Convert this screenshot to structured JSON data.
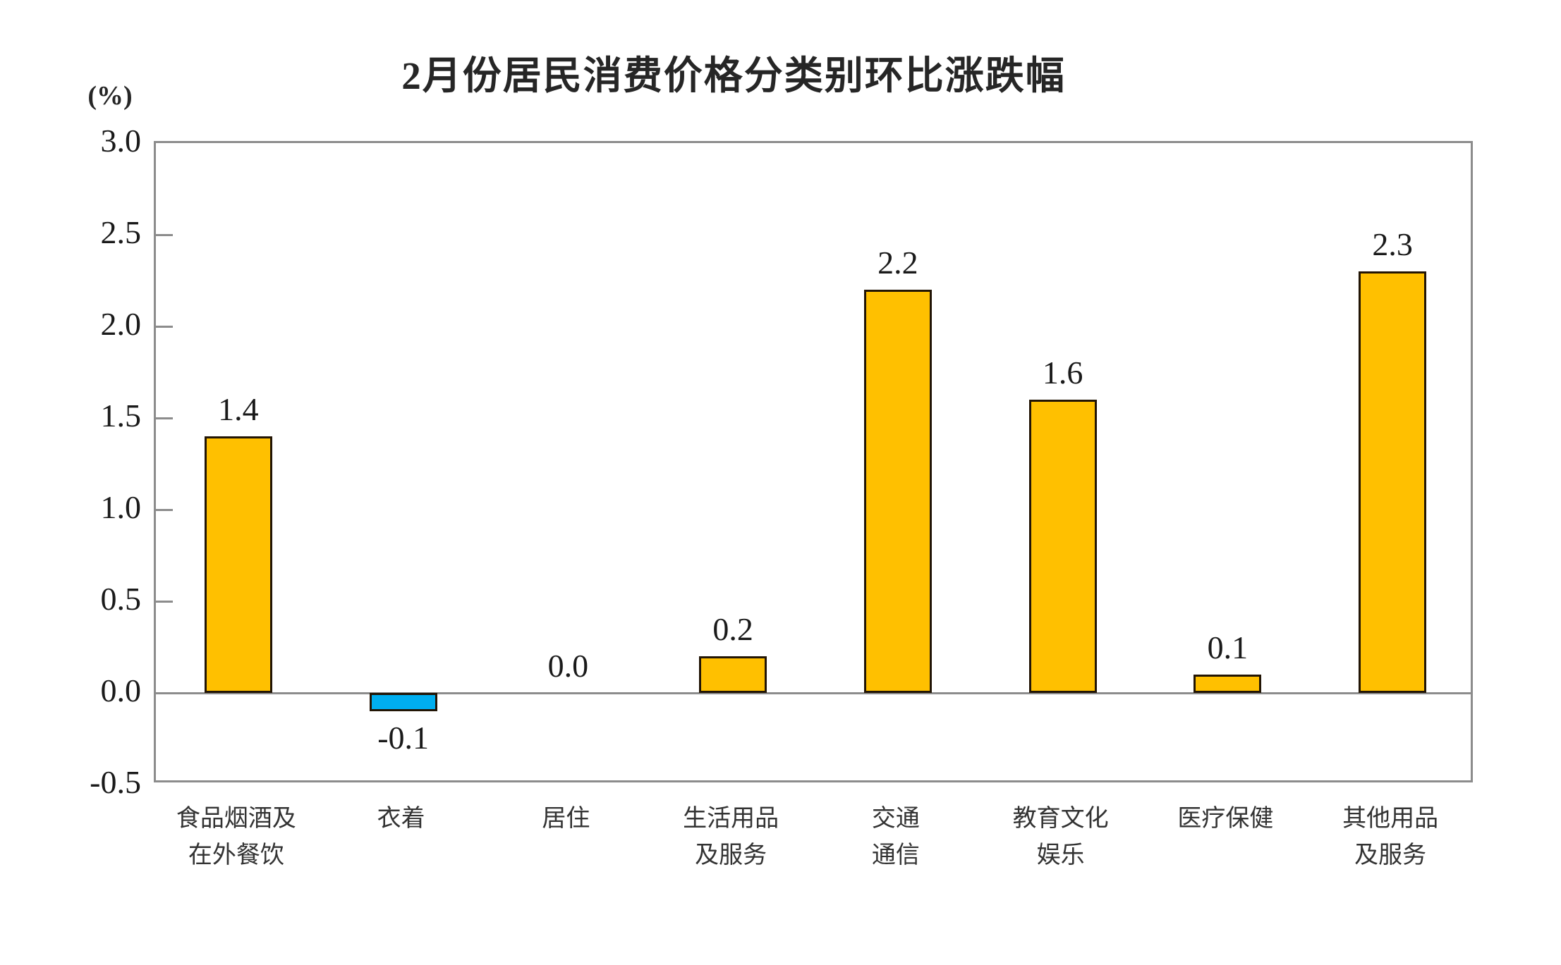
{
  "chart_data": {
    "type": "bar",
    "title": "2月份居民消费价格分类别环比涨跌幅",
    "unit_label": "(%)",
    "categories": [
      [
        "食品烟酒及",
        "在外餐饮"
      ],
      [
        "衣着"
      ],
      [
        "居住"
      ],
      [
        "生活用品",
        "及服务"
      ],
      [
        "交通",
        "通信"
      ],
      [
        "教育文化",
        "娱乐"
      ],
      [
        "医疗保健"
      ],
      [
        "其他用品",
        "及服务"
      ]
    ],
    "values": [
      1.4,
      -0.1,
      0.0,
      0.2,
      2.2,
      1.6,
      0.1,
      2.3
    ],
    "value_labels": [
      "1.4",
      "-0.1",
      "0.0",
      "0.2",
      "2.2",
      "1.6",
      "0.1",
      "2.3"
    ],
    "xlabel": "",
    "ylabel": "(%)",
    "ylim": [
      -0.5,
      3.0
    ],
    "ytick_step": 0.5,
    "yticks": [
      "3.0",
      "2.5",
      "2.0",
      "1.5",
      "1.0",
      "0.5",
      "0.0",
      "-0.5"
    ],
    "grid": "zero-line-only",
    "legend_position": "none",
    "colors": {
      "positive_bar": "#FFC000",
      "negative_bar": "#00AEEF",
      "bar_border": "#221505",
      "axis": "#8c8c8c",
      "text": "#1a1a1a"
    }
  }
}
